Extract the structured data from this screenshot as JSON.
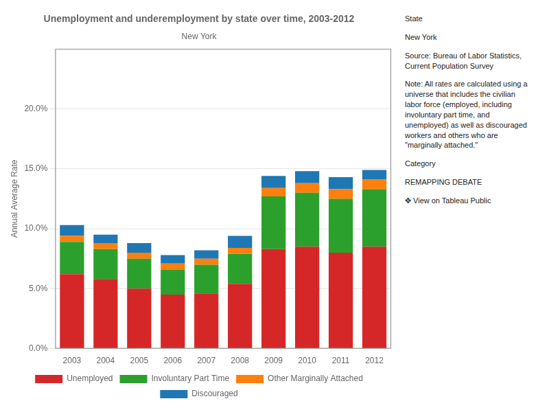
{
  "chart_data": {
    "type": "bar",
    "stacked": true,
    "title": "Unemployment and underemployment by state over time, 2003-2012",
    "subtitle": "New York",
    "y_label": "Annual Average Rate",
    "categories": [
      "2003",
      "2004",
      "2005",
      "2006",
      "2007",
      "2008",
      "2009",
      "2010",
      "2011",
      "2012"
    ],
    "series": [
      {
        "name": "Unemployed",
        "color": "#d62728",
        "values": [
          6.2,
          5.8,
          5.0,
          4.5,
          4.6,
          5.4,
          8.3,
          8.5,
          8.0,
          8.5
        ]
      },
      {
        "name": "Involuntary Part Time",
        "color": "#2ca02c",
        "values": [
          2.7,
          2.5,
          2.5,
          2.1,
          2.4,
          2.5,
          4.4,
          4.5,
          4.5,
          4.8
        ]
      },
      {
        "name": "Other Marginally Attached",
        "color": "#ff7f0e",
        "values": [
          0.5,
          0.5,
          0.5,
          0.5,
          0.5,
          0.5,
          0.7,
          0.8,
          0.8,
          0.8
        ]
      },
      {
        "name": "Discouraged",
        "color": "#1f77b4",
        "values": [
          0.9,
          0.7,
          0.8,
          0.7,
          0.7,
          1.0,
          1.0,
          1.0,
          1.0,
          0.8
        ]
      }
    ],
    "ylim": [
      0,
      25
    ],
    "yticks": [
      {
        "value": 0,
        "label": "0.0%"
      },
      {
        "value": 5,
        "label": "5.0%"
      },
      {
        "value": 10,
        "label": "10.0%"
      },
      {
        "value": 15,
        "label": "15.0%"
      },
      {
        "value": 20,
        "label": "20.0%"
      }
    ],
    "grid": true,
    "legend": "bottom",
    "annotations": [
      "State",
      "New York",
      "Source: Bureau of Labor Statistics, Current Population Survey",
      "Note: All rates are calculated using a universe that includes the civilian labor force (employed, including involuntary part time, and unemployed) as well as discouraged workers and others who are \"marginally attached.\"",
      "Category",
      "REMAPPING DEBATE",
      "✥ View on Tableau Public"
    ]
  }
}
